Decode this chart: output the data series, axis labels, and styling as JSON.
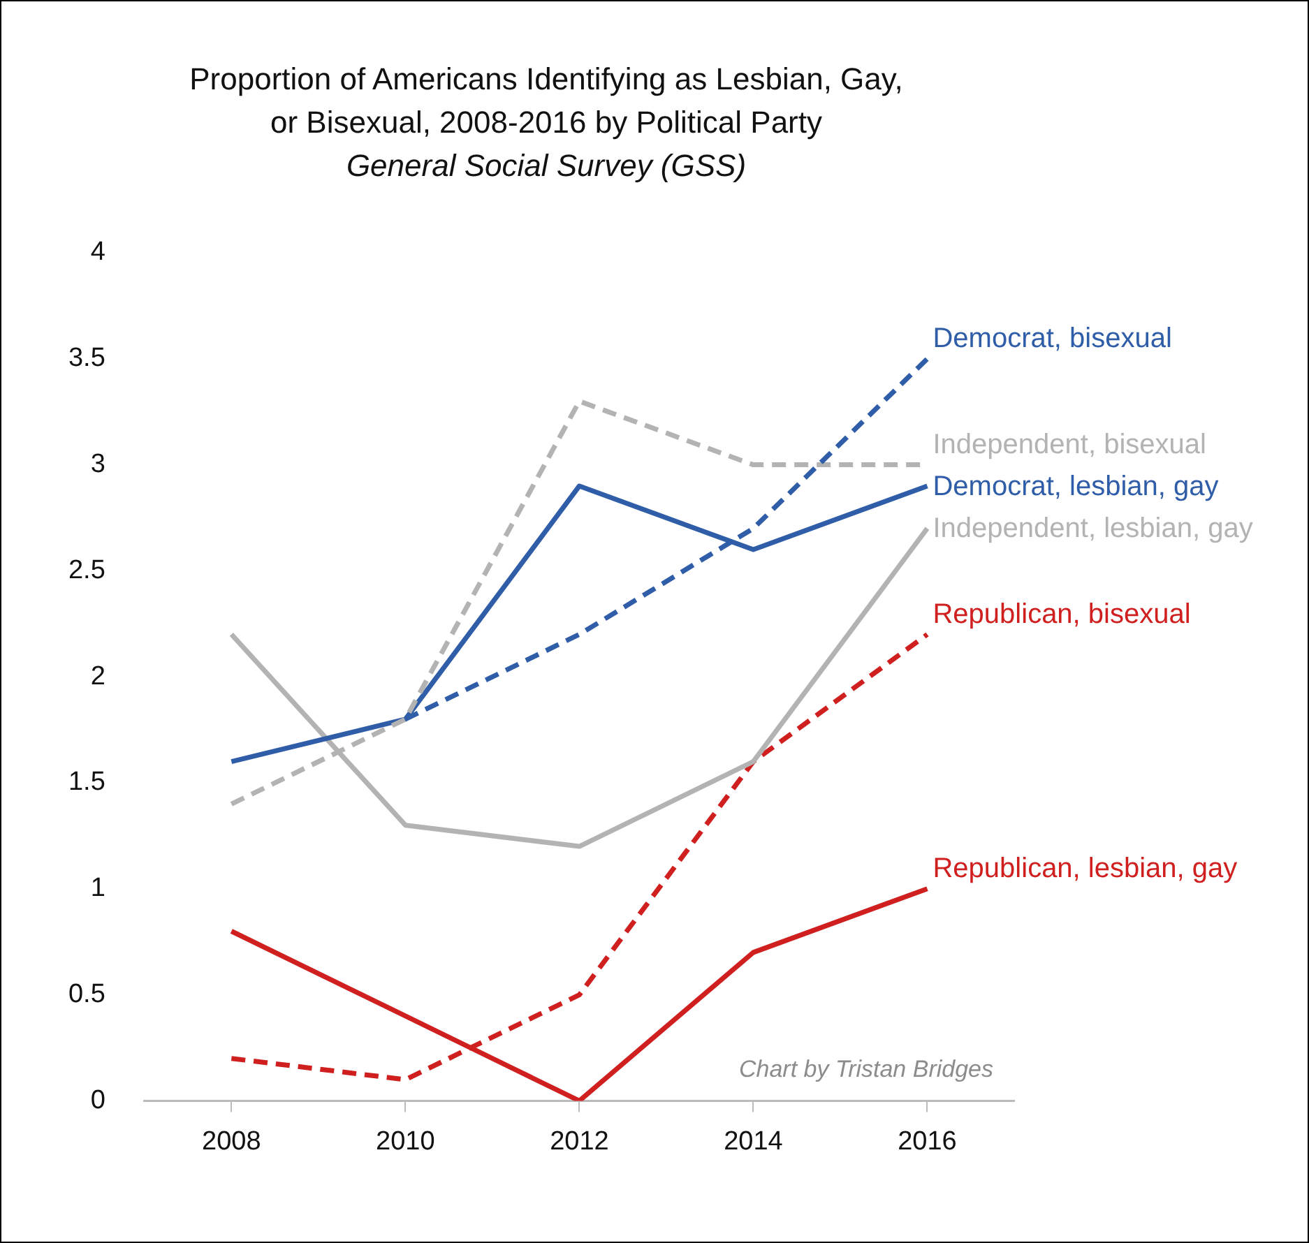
{
  "chart_data": {
    "type": "line",
    "title": "Proportion of Americans Identifying as Lesbian, Gay, or Bisexual, 2008-2016 by Political Party",
    "subtitle": "General Social Survey (GSS)",
    "categories": [
      "2008",
      "2010",
      "2012",
      "2014",
      "2016"
    ],
    "ylim": [
      0,
      4
    ],
    "yticks": [
      0,
      0.5,
      1,
      1.5,
      2,
      2.5,
      3,
      3.5,
      4
    ],
    "legend": false,
    "marker": "none",
    "series": [
      {
        "name": "Democrat, bisexual",
        "color": "#2f5da8",
        "line_style": "dashed",
        "values": [
          null,
          1.8,
          2.2,
          2.7,
          3.5
        ]
      },
      {
        "name": "Independent, bisexual",
        "color": "#b3b3b3",
        "line_style": "dashed",
        "values": [
          1.4,
          1.8,
          3.3,
          3.0,
          3.0
        ]
      },
      {
        "name": "Democrat, lesbian, gay",
        "color": "#2f5da8",
        "line_style": "solid",
        "values": [
          1.6,
          1.8,
          2.9,
          2.6,
          2.9
        ]
      },
      {
        "name": "Independent, lesbian, gay",
        "color": "#b3b3b3",
        "line_style": "solid",
        "values": [
          2.2,
          1.3,
          1.2,
          1.6,
          2.7
        ]
      },
      {
        "name": "Republican, bisexual",
        "color": "#d01f1f",
        "line_style": "dashed",
        "values": [
          0.2,
          0.1,
          0.5,
          1.6,
          2.2
        ]
      },
      {
        "name": "Republican, lesbian, gay",
        "color": "#d01f1f",
        "line_style": "solid",
        "values": [
          0.8,
          0.4,
          0.0,
          0.7,
          1.0
        ]
      }
    ],
    "annotations": [
      "Chart by Tristan Bridges"
    ]
  }
}
